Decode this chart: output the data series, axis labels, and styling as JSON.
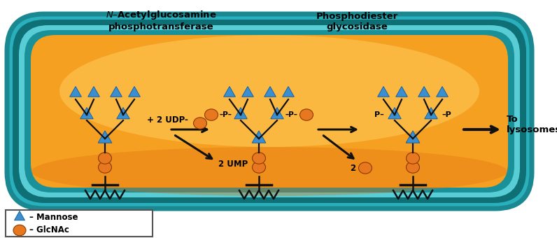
{
  "bg_outer": "#ffffff",
  "mannose_color": "#3a8fd1",
  "glcnac_color": "#e87820",
  "text_color": "#000000",
  "enzyme1_line1": "N–Acetylglucosamine",
  "enzyme1_line2": "phosphotransferase",
  "enzyme2_line1": "Phosphodiester",
  "enzyme2_line2": "glycosidase",
  "label_udp": "+ 2 UDP-",
  "label_ump": "2 UMP",
  "label_2": "2",
  "label_to": "To\nlysosomes",
  "legend_mannose": "▲ – Mannose",
  "legend_glcnac": "● – GlcNAc",
  "figsize": [
    7.96,
    3.4
  ],
  "dpi": 100,
  "teal_outer": "#3abcca",
  "teal_mid": "#1a9098",
  "teal_inner": "#5acdd6",
  "orange_bg": "#f5a020",
  "orange_light": "#ffd060"
}
